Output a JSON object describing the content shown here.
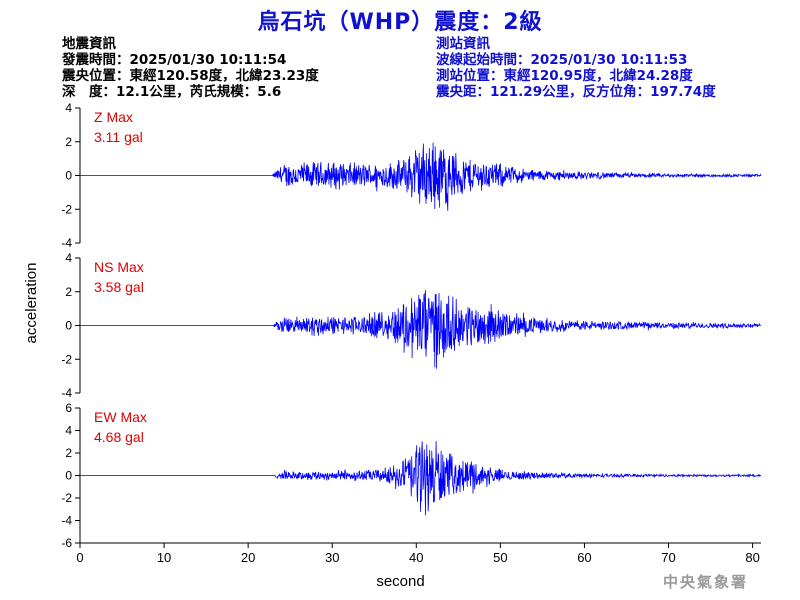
{
  "title": "烏石坑（WHP）震度：2級",
  "event_info": {
    "heading": "地震資訊",
    "origin_time": "發震時間：2025/01/30 10:11:54",
    "epicenter": "震央位置：東經120.58度，北緯23.23度",
    "depth_magnitude": "深　度：12.1公里，芮氏規模：5.6"
  },
  "station_info": {
    "heading": "測站資訊",
    "wave_onset": "波線起始時間：2025/01/30 10:11:53",
    "station_location": "測站位置：東經120.95度，北緯24.28度",
    "distance_azimuth": "震央距：121.29公里，反方位角：197.74度"
  },
  "footer": "中央氣象署",
  "colors": {
    "title": "#1010d0",
    "trace": "#0000ff",
    "max_label": "#e00000",
    "axis": "#000000"
  },
  "chart_data": {
    "type": "line",
    "xlabel": "second",
    "ylabel": "acceleration",
    "xlim": [
      0,
      81
    ],
    "x_ticks": [
      0,
      10,
      20,
      30,
      40,
      50,
      60,
      70,
      80
    ],
    "panels": [
      {
        "component": "Z",
        "max_label": "Z Max",
        "max_value": "3.11 gal",
        "ylim": [
          -4,
          4
        ],
        "y_ticks": [
          -4,
          -2,
          0,
          2,
          4
        ],
        "envelope": [
          [
            0,
            0
          ],
          [
            22.9,
            0
          ],
          [
            23.2,
            0.3
          ],
          [
            24,
            0.6
          ],
          [
            25,
            0.9
          ],
          [
            26,
            0.85
          ],
          [
            28,
            0.9
          ],
          [
            30,
            0.95
          ],
          [
            32,
            0.85
          ],
          [
            34,
            0.8
          ],
          [
            36,
            0.85
          ],
          [
            38,
            1.0
          ],
          [
            39.5,
            1.6
          ],
          [
            40.5,
            2.2
          ],
          [
            41.5,
            2.3
          ],
          [
            42.5,
            2.6
          ],
          [
            43.5,
            2.0
          ],
          [
            45,
            1.5
          ],
          [
            46,
            1.2
          ],
          [
            48,
            1.0
          ],
          [
            50,
            0.8
          ],
          [
            52,
            0.5
          ],
          [
            55,
            0.35
          ],
          [
            60,
            0.25
          ],
          [
            65,
            0.15
          ],
          [
            70,
            0.12
          ],
          [
            75,
            0.1
          ],
          [
            81,
            0.08
          ]
        ]
      },
      {
        "component": "NS",
        "max_label": "NS Max",
        "max_value": "3.58 gal",
        "ylim": [
          -4,
          4
        ],
        "y_ticks": [
          -4,
          -2,
          0,
          2,
          4
        ],
        "envelope": [
          [
            0,
            0
          ],
          [
            23,
            0
          ],
          [
            23.3,
            0.3
          ],
          [
            24,
            0.5
          ],
          [
            26,
            0.6
          ],
          [
            28,
            0.75
          ],
          [
            30,
            0.6
          ],
          [
            32,
            0.6
          ],
          [
            34,
            0.7
          ],
          [
            36,
            0.9
          ],
          [
            38,
            1.4
          ],
          [
            39.5,
            2.2
          ],
          [
            40.5,
            2.8
          ],
          [
            41.5,
            2.9
          ],
          [
            42.5,
            2.6
          ],
          [
            43.5,
            2.2
          ],
          [
            45,
            1.6
          ],
          [
            47,
            1.4
          ],
          [
            48.5,
            1.5
          ],
          [
            50,
            1.0
          ],
          [
            52,
            0.7
          ],
          [
            55,
            0.45
          ],
          [
            58,
            0.35
          ],
          [
            62,
            0.3
          ],
          [
            66,
            0.25
          ],
          [
            70,
            0.2
          ],
          [
            75,
            0.18
          ],
          [
            81,
            0.15
          ]
        ]
      },
      {
        "component": "EW",
        "max_label": "EW Max",
        "max_value": "4.68 gal",
        "ylim": [
          -6,
          6
        ],
        "y_ticks": [
          -6,
          -4,
          -2,
          0,
          2,
          4,
          6
        ],
        "envelope": [
          [
            0,
            0
          ],
          [
            23,
            0
          ],
          [
            23.3,
            0.2
          ],
          [
            24,
            0.4
          ],
          [
            26,
            0.4
          ],
          [
            28,
            0.45
          ],
          [
            30,
            0.5
          ],
          [
            32,
            0.5
          ],
          [
            34,
            0.55
          ],
          [
            36,
            0.7
          ],
          [
            38,
            1.2
          ],
          [
            39.5,
            2.8
          ],
          [
            40.5,
            4.0
          ],
          [
            41.5,
            3.6
          ],
          [
            42.5,
            3.8
          ],
          [
            43.5,
            2.4
          ],
          [
            45,
            1.6
          ],
          [
            46.5,
            1.8
          ],
          [
            48,
            1.0
          ],
          [
            50,
            0.6
          ],
          [
            52,
            0.45
          ],
          [
            55,
            0.3
          ],
          [
            60,
            0.2
          ],
          [
            65,
            0.15
          ],
          [
            70,
            0.12
          ],
          [
            81,
            0.1
          ]
        ]
      }
    ]
  }
}
